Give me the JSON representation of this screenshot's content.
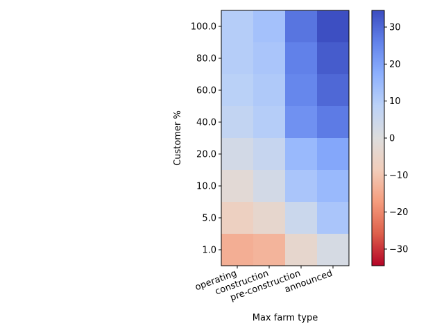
{
  "chart_data": {
    "type": "heatmap",
    "title": "",
    "xlabel": "Max farm type",
    "ylabel": "Customer %",
    "x_categories": [
      "operating",
      "construction",
      "pre-construction",
      "announced"
    ],
    "y_categories": [
      "100.0",
      "80.0",
      "60.0",
      "40.0",
      "20.0",
      "10.0",
      "5.0",
      "1.0"
    ],
    "values": [
      [
        10,
        13,
        28,
        34
      ],
      [
        10,
        12,
        26,
        32
      ],
      [
        9,
        11,
        25,
        30
      ],
      [
        7,
        10,
        23,
        27
      ],
      [
        3,
        6,
        15,
        19
      ],
      [
        -2,
        3,
        12,
        15
      ],
      [
        -7,
        -4,
        5,
        12
      ],
      [
        -14,
        -13,
        -4,
        2
      ]
    ],
    "colorbar": {
      "colormap": "coolwarm",
      "vmin": -34.5,
      "vmax": 34.5,
      "ticks": [
        "30",
        "20",
        "10",
        "0",
        "−10",
        "−20",
        "−30"
      ],
      "tick_values": [
        30,
        20,
        10,
        0,
        -10,
        -20,
        -30
      ]
    }
  }
}
